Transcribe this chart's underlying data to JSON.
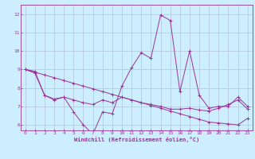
{
  "title": "",
  "xlabel": "Windchill (Refroidissement éolien,°C)",
  "ylabel": "",
  "background_color": "#cceeff",
  "grid_color": "#aabbcc",
  "line_color": "#993399",
  "xlim": [
    -0.5,
    23.5
  ],
  "ylim": [
    5.7,
    12.5
  ],
  "yticks": [
    6,
    7,
    8,
    9,
    10,
    11,
    12
  ],
  "xticks": [
    0,
    1,
    2,
    3,
    4,
    5,
    6,
    7,
    8,
    9,
    10,
    11,
    12,
    13,
    14,
    15,
    16,
    17,
    18,
    19,
    20,
    21,
    22,
    23
  ],
  "line1_x": [
    0,
    1,
    2,
    3,
    4,
    5,
    6,
    7,
    8,
    9,
    10,
    11,
    12,
    13,
    14,
    15,
    16,
    17,
    18,
    19,
    20,
    21,
    22,
    23
  ],
  "line1_y": [
    9.0,
    8.9,
    7.6,
    7.4,
    7.5,
    6.7,
    6.0,
    5.5,
    6.7,
    6.6,
    8.1,
    9.1,
    9.9,
    9.6,
    11.95,
    11.65,
    7.8,
    10.0,
    7.6,
    6.9,
    7.0,
    7.0,
    7.5,
    7.0
  ],
  "line2_x": [
    0,
    1,
    2,
    3,
    4,
    5,
    6,
    7,
    8,
    9,
    10,
    11,
    12,
    13,
    14,
    15,
    16,
    17,
    18,
    19,
    20,
    21,
    22,
    23
  ],
  "line2_y": [
    9.0,
    8.85,
    8.7,
    8.55,
    8.4,
    8.25,
    8.1,
    7.95,
    7.8,
    7.65,
    7.5,
    7.35,
    7.2,
    7.05,
    6.9,
    6.75,
    6.6,
    6.45,
    6.3,
    6.15,
    6.1,
    6.05,
    6.0,
    6.35
  ],
  "line3_x": [
    0,
    1,
    2,
    3,
    4,
    5,
    6,
    7,
    8,
    9,
    10,
    11,
    12,
    13,
    14,
    15,
    16,
    17,
    18,
    19,
    20,
    21,
    22,
    23
  ],
  "line3_y": [
    9.0,
    8.8,
    7.6,
    7.35,
    7.5,
    7.35,
    7.2,
    7.1,
    7.35,
    7.2,
    7.5,
    7.35,
    7.2,
    7.1,
    7.0,
    6.85,
    6.85,
    6.9,
    6.8,
    6.75,
    6.9,
    7.1,
    7.35,
    6.85
  ],
  "tick_fontsize": 4.5,
  "xlabel_fontsize": 5.0,
  "linewidth": 0.7,
  "markersize": 2.5,
  "figwidth": 3.2,
  "figheight": 2.0,
  "dpi": 100
}
